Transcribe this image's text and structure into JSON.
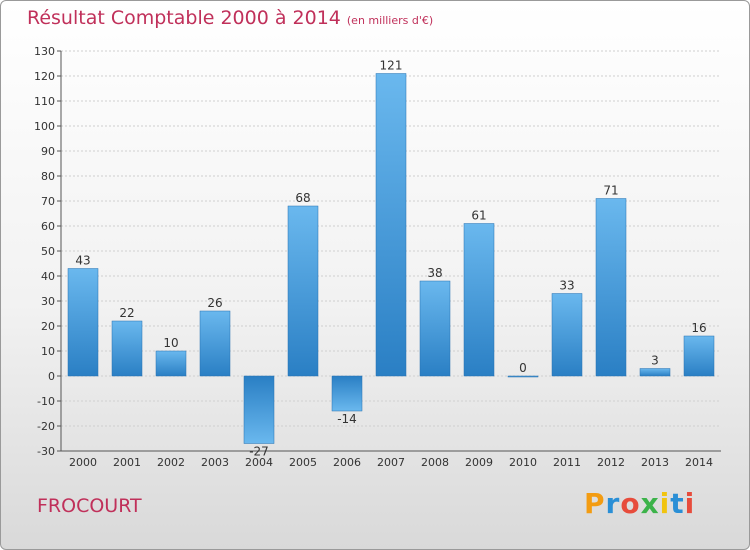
{
  "header": {
    "title": "Résultat Comptable 2000 à 2014",
    "subtitle": "(en milliers d'€)"
  },
  "commune": "FROCOURT",
  "brand": {
    "letters": [
      "P",
      "r",
      "o",
      "x",
      "i",
      "t",
      "i"
    ],
    "colors": [
      "#f39c12",
      "#2a8fd6",
      "#e74c3c",
      "#3cb34a",
      "#f1c40f",
      "#2a8fd6",
      "#e74c3c"
    ]
  },
  "colors": {
    "bar_light": "#6ab8ee",
    "bar_dark": "#2a7fc4",
    "title": "#c0305a"
  },
  "chart_data": {
    "type": "bar",
    "title": "Résultat Comptable 2000 à 2014",
    "xlabel": "",
    "ylabel": "",
    "categories": [
      "2000",
      "2001",
      "2002",
      "2003",
      "2004",
      "2005",
      "2006",
      "2007",
      "2008",
      "2009",
      "2010",
      "2011",
      "2012",
      "2013",
      "2014"
    ],
    "values": [
      43,
      22,
      10,
      26,
      -27,
      68,
      -14,
      121,
      38,
      61,
      0,
      33,
      71,
      3,
      16
    ],
    "ylim": [
      -30,
      130
    ],
    "yticks": [
      130,
      120,
      110,
      100,
      90,
      80,
      70,
      60,
      50,
      40,
      30,
      20,
      10,
      0,
      -10,
      -20,
      -30
    ],
    "grid": true
  }
}
